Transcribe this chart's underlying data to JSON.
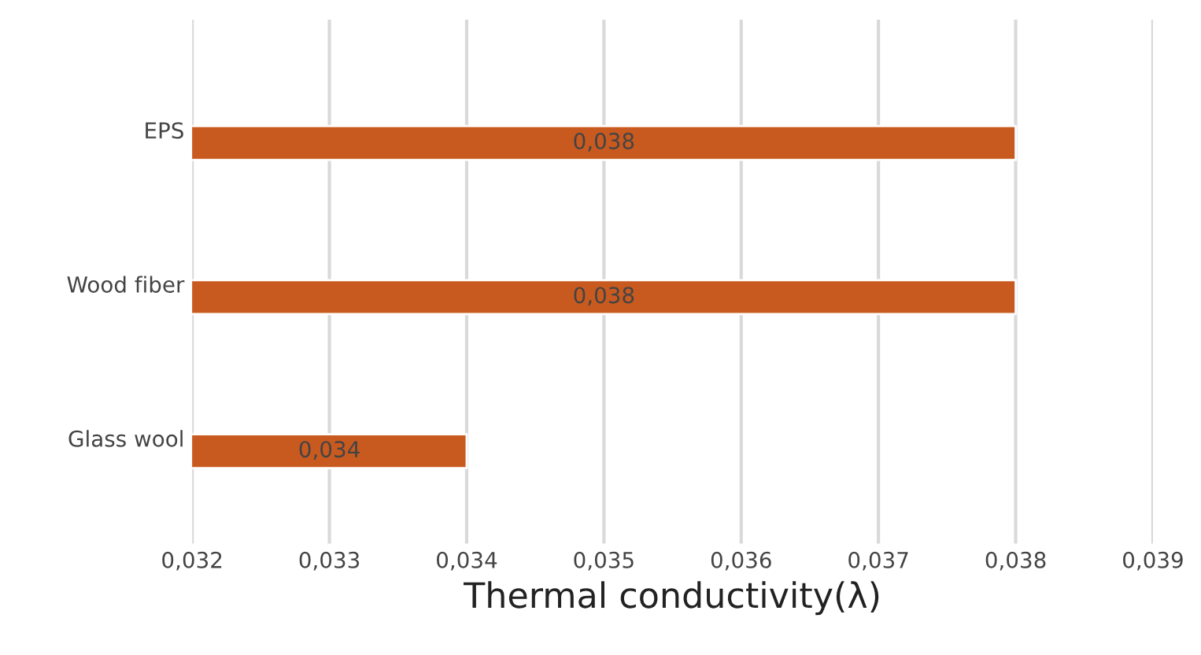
{
  "chart_data": {
    "type": "bar",
    "orientation": "horizontal",
    "xlabel": "Thermal conductivity(λ)",
    "categories": [
      "EPS",
      "Wood fiber",
      "Glass wool"
    ],
    "values": [
      0.038,
      0.038,
      0.034
    ],
    "color": "#c95a1f",
    "value_labels": [
      "0,038",
      "0,038",
      "0,034"
    ],
    "xlim": [
      0.032,
      0.039
    ],
    "xticks": [
      {
        "value": 0.032,
        "label": "0,032"
      },
      {
        "value": 0.033,
        "label": "0,033"
      },
      {
        "value": 0.034,
        "label": "0,034"
      },
      {
        "value": 0.035,
        "label": "0,035"
      },
      {
        "value": 0.036,
        "label": "0,036"
      },
      {
        "value": 0.037,
        "label": "0,037"
      },
      {
        "value": 0.038,
        "label": "0,038"
      },
      {
        "value": 0.039,
        "label": "0,039"
      }
    ],
    "grid": "x",
    "legend": false
  }
}
